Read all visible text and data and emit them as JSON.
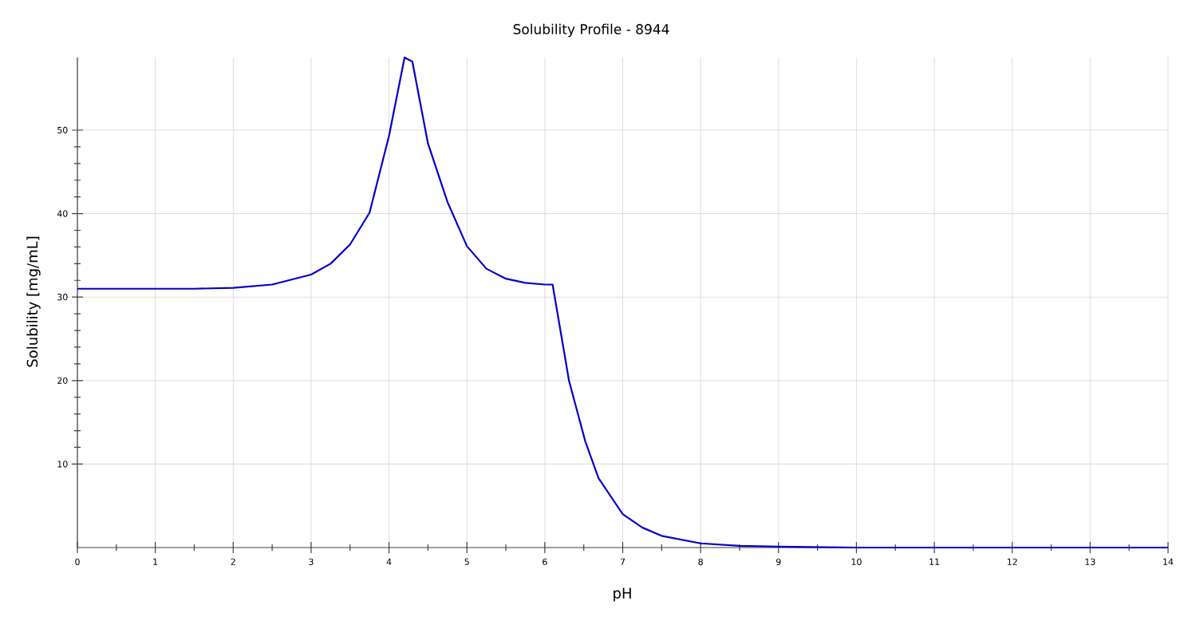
{
  "chart_data": {
    "type": "line",
    "title": "Solubility Profile - 8944",
    "xlabel": "pH",
    "ylabel": "Solubility [mg/mL]",
    "x": [
      0,
      1,
      1.5,
      2,
      2.5,
      3,
      3.25,
      3.5,
      3.75,
      4,
      4.2,
      4.3,
      4.5,
      4.75,
      5,
      5.25,
      5.5,
      5.75,
      6,
      6.1,
      6.31,
      6.52,
      6.69,
      7,
      7.25,
      7.5,
      8,
      8.5,
      9,
      10,
      11,
      12,
      13,
      14
    ],
    "series": [
      {
        "color": "#0000cc",
        "values": [
          31.0,
          31.0,
          31.0,
          31.1,
          31.5,
          32.7,
          34.0,
          36.3,
          40.1,
          49.3,
          58.7,
          58.2,
          48.4,
          41.4,
          36.1,
          33.4,
          32.2,
          31.7,
          31.5,
          31.5,
          20.0,
          12.7,
          8.3,
          4.0,
          2.4,
          1.4,
          0.5,
          0.2,
          0.1,
          0,
          0,
          0,
          0,
          0
        ]
      }
    ],
    "xlim": [
      0,
      14
    ],
    "ylim": [
      0,
      58.7
    ],
    "xticks": [
      0,
      1,
      2,
      3,
      4,
      5,
      6,
      7,
      8,
      9,
      10,
      11,
      12,
      13,
      14
    ],
    "yticks": [
      10,
      20,
      30,
      40,
      50
    ],
    "grid": true,
    "marker": "none",
    "line_style": "solid"
  }
}
